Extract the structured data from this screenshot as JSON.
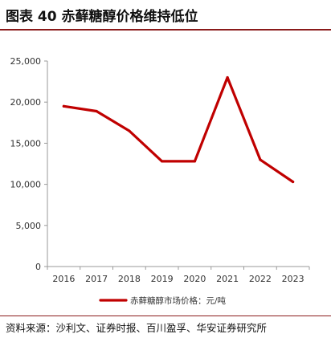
{
  "header": {
    "title": "图表 40 赤藓糖醇价格维持低位"
  },
  "footer": {
    "source": "资料来源：沙利文、证券时报、百川盈孚、华安证券研究所"
  },
  "chart_data": {
    "type": "line",
    "categories": [
      "2016",
      "2017",
      "2018",
      "2019",
      "2020",
      "2021",
      "2022",
      "2023"
    ],
    "series": [
      {
        "name": "赤藓糖醇市场价格：元/吨",
        "values": [
          19500,
          18900,
          16500,
          12800,
          12800,
          23000,
          13000,
          10300
        ],
        "color": "#c00000"
      }
    ],
    "yticks": [
      "0",
      "5,000",
      "10,000",
      "15,000",
      "20,000",
      "25,000"
    ],
    "ylim": [
      0,
      25000
    ],
    "grid": false,
    "legend_position": "bottom"
  }
}
